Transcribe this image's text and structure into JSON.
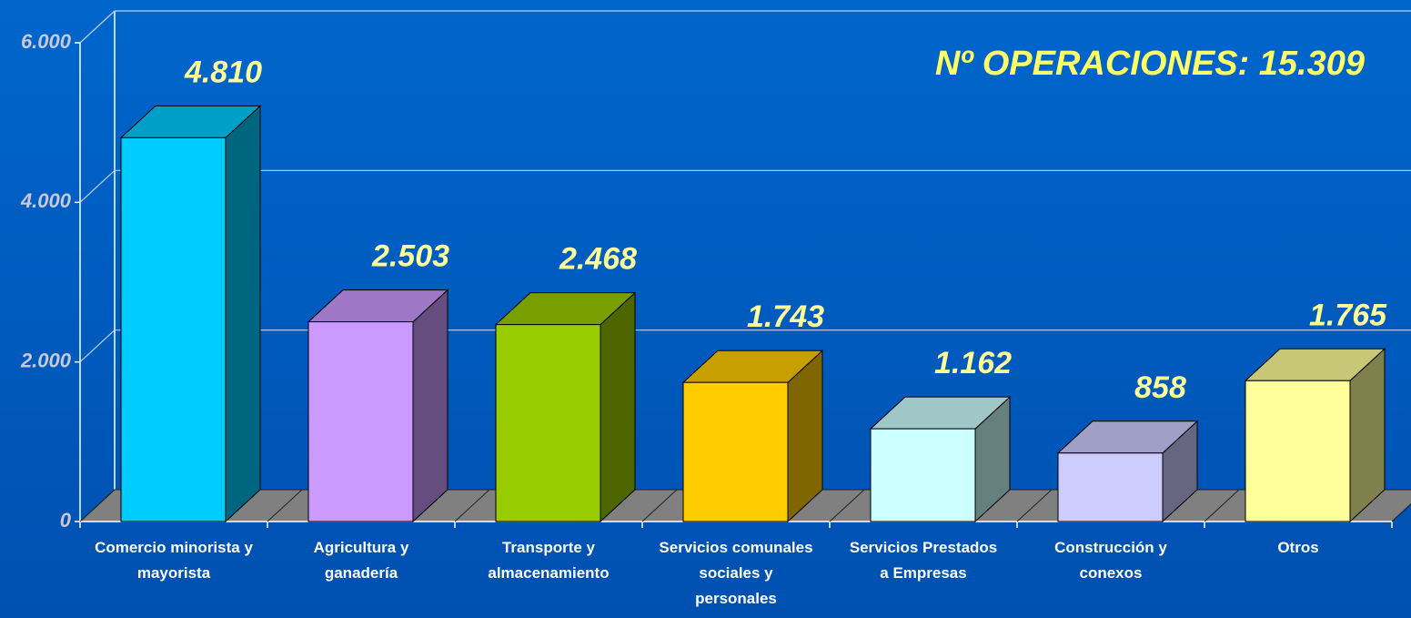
{
  "chart_data": {
    "type": "bar3d",
    "annotation": "Nº  OPERACIONES: 15.309",
    "categories": [
      "Comercio minorista y\nmayorista",
      "Agricultura y\nganadería",
      "Transporte  y\nalmacenamiento",
      "Servicios comunales\nsociales  y\npersonales",
      "Servicios Prestados\na Empresas",
      "Construcción y\nconexos",
      "Otros"
    ],
    "values": [
      4810,
      2503,
      2468,
      1743,
      1162,
      858,
      1765
    ],
    "value_labels": [
      "4.810",
      "2.503",
      "2.468",
      "1.743",
      "1.162",
      "858",
      "1.765"
    ],
    "colors": [
      "#00ccff",
      "#cc99ff",
      "#99cc00",
      "#ffcc00",
      "#ccffff",
      "#ccccff",
      "#ffff99"
    ],
    "ylim": [
      0,
      6000
    ],
    "yticks": [
      0,
      {
        "value": 2000,
        "label": "2.000"
      },
      {
        "value": 4000,
        "label": "4.000"
      },
      {
        "value": 6000,
        "label": "6.000"
      }
    ],
    "grid": true
  }
}
